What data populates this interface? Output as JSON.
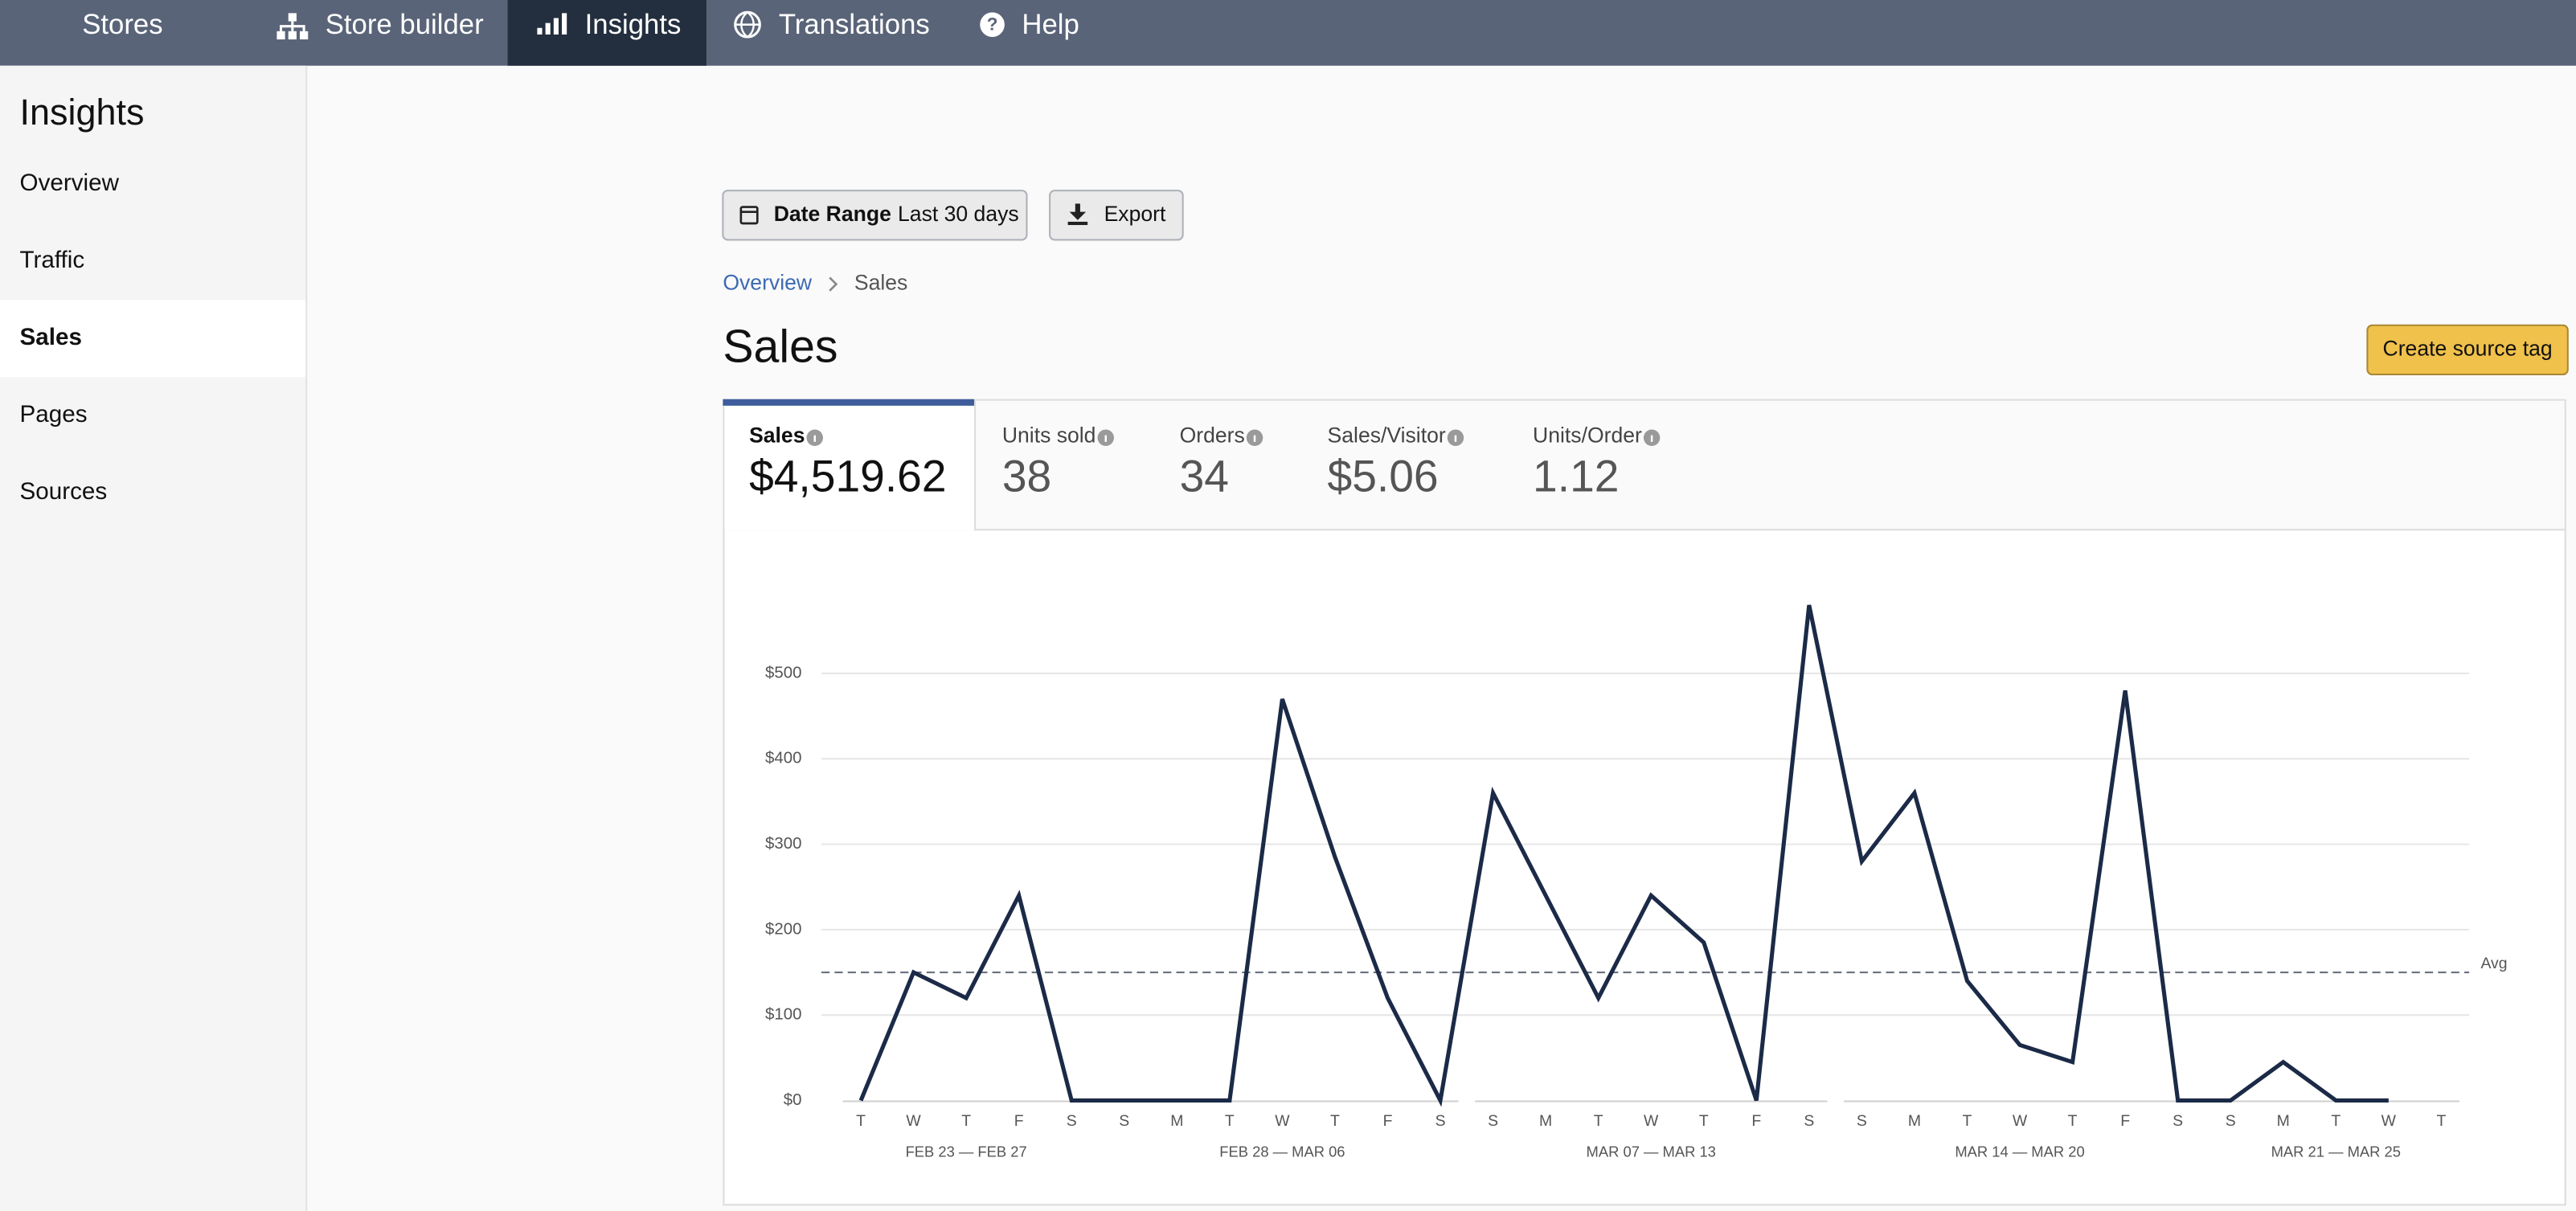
{
  "nav": [
    {
      "label": "Stores"
    },
    {
      "label": "Store builder"
    },
    {
      "label": "Insights",
      "active": true
    },
    {
      "label": "Translations"
    },
    {
      "label": "Help"
    }
  ],
  "sidebar": {
    "title": "Insights",
    "items": [
      {
        "label": "Overview"
      },
      {
        "label": "Traffic"
      },
      {
        "label": "Sales",
        "active": true
      },
      {
        "label": "Pages"
      },
      {
        "label": "Sources"
      }
    ]
  },
  "toolbar": {
    "date_range_label": "Date Range",
    "date_range_value": "Last 30 days",
    "export": "Export"
  },
  "breadcrumb": [
    "Overview",
    "Sales"
  ],
  "page_title": "Sales",
  "create_button": "Create source tag",
  "metrics": [
    {
      "label": "Sales",
      "value": "$4,519.62",
      "active": true
    },
    {
      "label": "Units sold",
      "value": "38"
    },
    {
      "label": "Orders",
      "value": "34"
    },
    {
      "label": "Sales/Visitor",
      "value": "$5.06"
    },
    {
      "label": "Units/Order",
      "value": "1.12"
    }
  ],
  "chart_data": {
    "type": "line",
    "categories": [
      "T",
      "W",
      "T",
      "F",
      "S",
      "S",
      "M",
      "T",
      "W",
      "T",
      "F",
      "S",
      "S",
      "M",
      "T",
      "W",
      "T",
      "F",
      "S",
      "S",
      "M",
      "T",
      "W",
      "T",
      "F",
      "S",
      "S",
      "M",
      "T",
      "W",
      "T"
    ],
    "weeks": [
      "FEB 23 — FEB 27",
      "FEB 28 — MAR 06",
      "MAR 07 — MAR 13",
      "MAR 14 — MAR 20",
      "MAR 21 — MAR 25"
    ],
    "values": [
      0,
      150,
      120,
      240,
      0,
      0,
      0,
      0,
      470,
      285,
      120,
      0,
      360,
      240,
      120,
      240,
      185,
      0,
      580,
      280,
      360,
      140,
      65,
      45,
      480,
      0,
      0,
      45,
      0,
      0,
      null
    ],
    "color": "#1b2a47",
    "ylim": [
      0,
      600
    ],
    "yticks": [
      {
        "value": 0,
        "label": "$0"
      },
      {
        "value": 100,
        "label": "$100"
      },
      {
        "value": 200,
        "label": "$200"
      },
      {
        "value": 300,
        "label": "$300"
      },
      {
        "value": 400,
        "label": "$400"
      },
      {
        "value": 500,
        "label": "$500"
      }
    ],
    "grid": true,
    "avg": 150,
    "avg_label": "Avg"
  }
}
